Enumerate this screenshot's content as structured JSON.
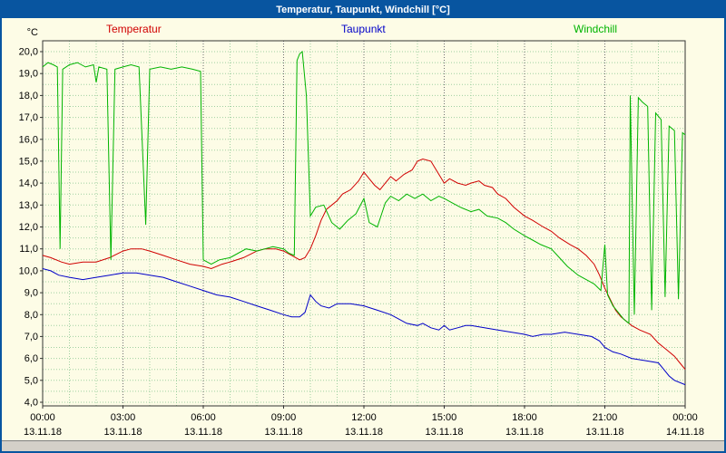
{
  "window": {
    "title": "Temperatur, Taupunkt, Windchill [°C]",
    "titlebar_color": "#0855a0",
    "background_color": "#fdfce6",
    "statusbar_color": "#d4d0c8"
  },
  "legend": [
    {
      "label": "Temperatur",
      "color": "#d00000"
    },
    {
      "label": "Taupunkt",
      "color": "#0000c8"
    },
    {
      "label": "Windchill",
      "color": "#00b400"
    }
  ],
  "chart_data": {
    "type": "line",
    "title": "Temperatur, Taupunkt, Windchill [°C]",
    "ylabel": "°C",
    "xlabel": "",
    "ylim": [
      4,
      20
    ],
    "xlim_hours": [
      0,
      24
    ],
    "grid": {
      "on": true,
      "color": "#a0d0a0",
      "major_color": "#707070",
      "h_step": 0.5,
      "v_step_hours": 1,
      "v_major_hours": 3
    },
    "legend_position": "top",
    "y_ticks": [
      {
        "value": 20,
        "label": "20,0"
      },
      {
        "value": 19,
        "label": "19,0"
      },
      {
        "value": 18,
        "label": "18,0"
      },
      {
        "value": 17,
        "label": "17,0"
      },
      {
        "value": 16,
        "label": "16,0"
      },
      {
        "value": 15,
        "label": "15,0"
      },
      {
        "value": 14,
        "label": "14,0"
      },
      {
        "value": 13,
        "label": "13,0"
      },
      {
        "value": 12,
        "label": "12,0"
      },
      {
        "value": 11,
        "label": "11,0"
      },
      {
        "value": 10,
        "label": "10,0"
      },
      {
        "value": 9,
        "label": "9,0"
      },
      {
        "value": 8,
        "label": "8,0"
      },
      {
        "value": 7,
        "label": "7,0"
      },
      {
        "value": 6,
        "label": "6,0"
      },
      {
        "value": 5,
        "label": "5,0"
      },
      {
        "value": 4,
        "label": "4,0"
      }
    ],
    "x_ticks": [
      {
        "hour": 0,
        "time": "00:00",
        "date": "13.11.18"
      },
      {
        "hour": 3,
        "time": "03:00",
        "date": "13.11.18"
      },
      {
        "hour": 6,
        "time": "06:00",
        "date": "13.11.18"
      },
      {
        "hour": 9,
        "time": "09:00",
        "date": "13.11.18"
      },
      {
        "hour": 12,
        "time": "12:00",
        "date": "13.11.18"
      },
      {
        "hour": 15,
        "time": "15:00",
        "date": "13.11.18"
      },
      {
        "hour": 18,
        "time": "18:00",
        "date": "13.11.18"
      },
      {
        "hour": 21,
        "time": "21:00",
        "date": "13.11.18"
      },
      {
        "hour": 24,
        "time": "00:00",
        "date": "14.11.18"
      }
    ],
    "series": [
      {
        "name": "Temperatur",
        "color": "#d00000",
        "points": [
          [
            0,
            10.7
          ],
          [
            0.3,
            10.6
          ],
          [
            0.7,
            10.4
          ],
          [
            1,
            10.3
          ],
          [
            1.5,
            10.4
          ],
          [
            2,
            10.4
          ],
          [
            2.5,
            10.6
          ],
          [
            3,
            10.9
          ],
          [
            3.3,
            11.0
          ],
          [
            3.7,
            11.0
          ],
          [
            4,
            10.9
          ],
          [
            4.5,
            10.7
          ],
          [
            5,
            10.5
          ],
          [
            5.5,
            10.3
          ],
          [
            6,
            10.2
          ],
          [
            6.3,
            10.1
          ],
          [
            6.7,
            10.3
          ],
          [
            7,
            10.4
          ],
          [
            7.5,
            10.6
          ],
          [
            8,
            10.9
          ],
          [
            8.3,
            11.0
          ],
          [
            8.7,
            11.0
          ],
          [
            9,
            10.9
          ],
          [
            9.3,
            10.7
          ],
          [
            9.6,
            10.5
          ],
          [
            9.8,
            10.6
          ],
          [
            10,
            11.0
          ],
          [
            10.2,
            11.6
          ],
          [
            10.4,
            12.3
          ],
          [
            10.6,
            12.8
          ],
          [
            10.8,
            13.0
          ],
          [
            11,
            13.2
          ],
          [
            11.2,
            13.5
          ],
          [
            11.5,
            13.7
          ],
          [
            11.8,
            14.1
          ],
          [
            12,
            14.5
          ],
          [
            12.2,
            14.2
          ],
          [
            12.4,
            13.9
          ],
          [
            12.6,
            13.7
          ],
          [
            12.8,
            14.0
          ],
          [
            13,
            14.3
          ],
          [
            13.2,
            14.1
          ],
          [
            13.5,
            14.4
          ],
          [
            13.8,
            14.6
          ],
          [
            14,
            15.0
          ],
          [
            14.2,
            15.1
          ],
          [
            14.5,
            15.0
          ],
          [
            14.7,
            14.6
          ],
          [
            15,
            14.0
          ],
          [
            15.2,
            14.2
          ],
          [
            15.5,
            14.0
          ],
          [
            15.8,
            13.9
          ],
          [
            16,
            14.0
          ],
          [
            16.3,
            14.1
          ],
          [
            16.5,
            13.9
          ],
          [
            16.8,
            13.8
          ],
          [
            17,
            13.5
          ],
          [
            17.3,
            13.3
          ],
          [
            17.6,
            12.9
          ],
          [
            18,
            12.5
          ],
          [
            18.3,
            12.3
          ],
          [
            18.7,
            12.0
          ],
          [
            19,
            11.8
          ],
          [
            19.3,
            11.5
          ],
          [
            19.7,
            11.2
          ],
          [
            20,
            11.0
          ],
          [
            20.3,
            10.7
          ],
          [
            20.6,
            10.3
          ],
          [
            20.8,
            9.8
          ],
          [
            21,
            9.2
          ],
          [
            21.2,
            8.7
          ],
          [
            21.4,
            8.2
          ],
          [
            21.6,
            7.9
          ],
          [
            21.8,
            7.7
          ],
          [
            22,
            7.5
          ],
          [
            22.3,
            7.3
          ],
          [
            22.7,
            7.1
          ],
          [
            23,
            6.7
          ],
          [
            23.3,
            6.4
          ],
          [
            23.6,
            6.1
          ],
          [
            23.8,
            5.8
          ],
          [
            24,
            5.5
          ]
        ]
      },
      {
        "name": "Taupunkt",
        "color": "#0000c8",
        "points": [
          [
            0,
            10.1
          ],
          [
            0.3,
            10.0
          ],
          [
            0.6,
            9.8
          ],
          [
            1,
            9.7
          ],
          [
            1.5,
            9.6
          ],
          [
            2,
            9.7
          ],
          [
            2.5,
            9.8
          ],
          [
            3,
            9.9
          ],
          [
            3.5,
            9.9
          ],
          [
            4,
            9.8
          ],
          [
            4.5,
            9.7
          ],
          [
            5,
            9.5
          ],
          [
            5.5,
            9.3
          ],
          [
            6,
            9.1
          ],
          [
            6.5,
            8.9
          ],
          [
            7,
            8.8
          ],
          [
            7.5,
            8.6
          ],
          [
            8,
            8.4
          ],
          [
            8.5,
            8.2
          ],
          [
            9,
            8.0
          ],
          [
            9.3,
            7.9
          ],
          [
            9.6,
            7.9
          ],
          [
            9.8,
            8.1
          ],
          [
            10,
            8.9
          ],
          [
            10.2,
            8.6
          ],
          [
            10.4,
            8.4
          ],
          [
            10.7,
            8.3
          ],
          [
            11,
            8.5
          ],
          [
            11.5,
            8.5
          ],
          [
            12,
            8.4
          ],
          [
            12.5,
            8.2
          ],
          [
            13,
            8.0
          ],
          [
            13.3,
            7.8
          ],
          [
            13.6,
            7.6
          ],
          [
            14,
            7.5
          ],
          [
            14.2,
            7.6
          ],
          [
            14.5,
            7.4
          ],
          [
            14.8,
            7.3
          ],
          [
            15,
            7.5
          ],
          [
            15.2,
            7.3
          ],
          [
            15.5,
            7.4
          ],
          [
            15.8,
            7.5
          ],
          [
            16,
            7.5
          ],
          [
            16.5,
            7.4
          ],
          [
            17,
            7.3
          ],
          [
            17.5,
            7.2
          ],
          [
            18,
            7.1
          ],
          [
            18.3,
            7.0
          ],
          [
            18.7,
            7.1
          ],
          [
            19,
            7.1
          ],
          [
            19.5,
            7.2
          ],
          [
            20,
            7.1
          ],
          [
            20.5,
            7.0
          ],
          [
            20.8,
            6.8
          ],
          [
            21,
            6.5
          ],
          [
            21.3,
            6.3
          ],
          [
            21.6,
            6.2
          ],
          [
            22,
            6.0
          ],
          [
            22.5,
            5.9
          ],
          [
            23,
            5.8
          ],
          [
            23.2,
            5.5
          ],
          [
            23.4,
            5.2
          ],
          [
            23.6,
            5.0
          ],
          [
            24,
            4.8
          ]
        ]
      },
      {
        "name": "Windchill",
        "color": "#00b400",
        "points": [
          [
            0,
            19.3
          ],
          [
            0.2,
            19.5
          ],
          [
            0.4,
            19.4
          ],
          [
            0.55,
            19.3
          ],
          [
            0.65,
            11.0
          ],
          [
            0.75,
            19.2
          ],
          [
            1,
            19.4
          ],
          [
            1.3,
            19.5
          ],
          [
            1.6,
            19.3
          ],
          [
            1.9,
            19.4
          ],
          [
            2.0,
            18.6
          ],
          [
            2.1,
            19.3
          ],
          [
            2.4,
            19.2
          ],
          [
            2.55,
            10.5
          ],
          [
            2.7,
            19.2
          ],
          [
            3,
            19.3
          ],
          [
            3.3,
            19.4
          ],
          [
            3.6,
            19.3
          ],
          [
            3.85,
            12.1
          ],
          [
            4.0,
            19.2
          ],
          [
            4.4,
            19.3
          ],
          [
            4.8,
            19.2
          ],
          [
            5.2,
            19.3
          ],
          [
            5.6,
            19.2
          ],
          [
            5.9,
            19.1
          ],
          [
            6.0,
            10.5
          ],
          [
            6.3,
            10.3
          ],
          [
            6.6,
            10.5
          ],
          [
            7,
            10.6
          ],
          [
            7.3,
            10.8
          ],
          [
            7.6,
            11.0
          ],
          [
            8,
            10.9
          ],
          [
            8.3,
            11.0
          ],
          [
            8.6,
            11.1
          ],
          [
            9,
            11.0
          ],
          [
            9.2,
            10.8
          ],
          [
            9.4,
            10.7
          ],
          [
            9.5,
            19.6
          ],
          [
            9.6,
            19.9
          ],
          [
            9.7,
            20.0
          ],
          [
            9.85,
            18.0
          ],
          [
            10,
            12.5
          ],
          [
            10.2,
            12.9
          ],
          [
            10.5,
            13.0
          ],
          [
            10.8,
            12.2
          ],
          [
            11.1,
            11.9
          ],
          [
            11.4,
            12.3
          ],
          [
            11.7,
            12.6
          ],
          [
            12,
            13.3
          ],
          [
            12.2,
            12.2
          ],
          [
            12.5,
            12.0
          ],
          [
            12.8,
            13.1
          ],
          [
            13,
            13.4
          ],
          [
            13.3,
            13.2
          ],
          [
            13.6,
            13.5
          ],
          [
            13.9,
            13.3
          ],
          [
            14.2,
            13.5
          ],
          [
            14.5,
            13.2
          ],
          [
            14.8,
            13.4
          ],
          [
            15,
            13.3
          ],
          [
            15.3,
            13.1
          ],
          [
            15.6,
            12.9
          ],
          [
            16,
            12.7
          ],
          [
            16.3,
            12.8
          ],
          [
            16.6,
            12.5
          ],
          [
            17,
            12.4
          ],
          [
            17.3,
            12.2
          ],
          [
            17.6,
            11.9
          ],
          [
            18,
            11.6
          ],
          [
            18.3,
            11.4
          ],
          [
            18.6,
            11.2
          ],
          [
            19,
            11.0
          ],
          [
            19.3,
            10.6
          ],
          [
            19.6,
            10.2
          ],
          [
            20,
            9.8
          ],
          [
            20.3,
            9.6
          ],
          [
            20.6,
            9.4
          ],
          [
            20.85,
            9.1
          ],
          [
            21,
            11.2
          ],
          [
            21.1,
            8.9
          ],
          [
            21.3,
            8.4
          ],
          [
            21.5,
            8.1
          ],
          [
            21.7,
            7.8
          ],
          [
            21.9,
            7.6
          ],
          [
            21.95,
            18.0
          ],
          [
            22.1,
            8.0
          ],
          [
            22.25,
            17.9
          ],
          [
            22.4,
            17.7
          ],
          [
            22.6,
            17.5
          ],
          [
            22.75,
            8.2
          ],
          [
            22.9,
            17.2
          ],
          [
            23.1,
            16.9
          ],
          [
            23.25,
            8.8
          ],
          [
            23.4,
            16.6
          ],
          [
            23.6,
            16.4
          ],
          [
            23.75,
            8.7
          ],
          [
            23.9,
            16.3
          ],
          [
            24,
            16.2
          ]
        ]
      }
    ]
  }
}
